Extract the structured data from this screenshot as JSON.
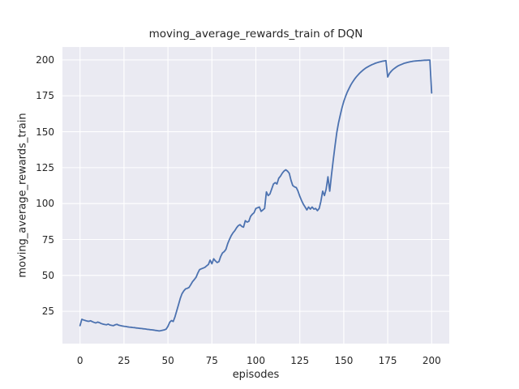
{
  "chart_data": {
    "type": "line",
    "title": "moving_average_rewards_train of DQN",
    "xlabel": "episodes",
    "ylabel": "moving_average_rewards_train",
    "xlim": [
      -10,
      210
    ],
    "ylim": [
      2.5,
      209
    ],
    "xticks": [
      0,
      25,
      50,
      75,
      100,
      125,
      150,
      175,
      200
    ],
    "yticks": [
      25,
      50,
      75,
      100,
      125,
      150,
      175,
      200
    ],
    "grid": true,
    "legend_position": "none",
    "plot_background": "#eaeaf2",
    "grid_color": "#ffffff",
    "text_color": "#262626",
    "series": [
      {
        "name": "DQN",
        "color": "#4c72b0",
        "line_width": 1.8,
        "points": [
          [
            0,
            15.0
          ],
          [
            1,
            19.4
          ],
          [
            2,
            19.0
          ],
          [
            3,
            18.6
          ],
          [
            4,
            18.2
          ],
          [
            5,
            18.0
          ],
          [
            6,
            18.4
          ],
          [
            7,
            17.8
          ],
          [
            8,
            17.3
          ],
          [
            9,
            16.9
          ],
          [
            10,
            17.5
          ],
          [
            11,
            17.1
          ],
          [
            12,
            16.5
          ],
          [
            13,
            16.1
          ],
          [
            14,
            15.8
          ],
          [
            15,
            15.6
          ],
          [
            16,
            16.1
          ],
          [
            17,
            15.5
          ],
          [
            18,
            15.2
          ],
          [
            19,
            15.0
          ],
          [
            20,
            15.6
          ],
          [
            21,
            15.9
          ],
          [
            22,
            15.3
          ],
          [
            23,
            15.0
          ],
          [
            24,
            14.8
          ],
          [
            25,
            14.6
          ],
          [
            26,
            14.4
          ],
          [
            27,
            14.2
          ],
          [
            28,
            14.0
          ],
          [
            29,
            13.9
          ],
          [
            30,
            13.7
          ],
          [
            31,
            13.6
          ],
          [
            32,
            13.4
          ],
          [
            33,
            13.3
          ],
          [
            34,
            13.1
          ],
          [
            35,
            13.0
          ],
          [
            36,
            12.8
          ],
          [
            37,
            12.7
          ],
          [
            38,
            12.5
          ],
          [
            39,
            12.4
          ],
          [
            40,
            12.2
          ],
          [
            41,
            12.1
          ],
          [
            42,
            11.9
          ],
          [
            43,
            11.7
          ],
          [
            44,
            11.5
          ],
          [
            45,
            11.3
          ],
          [
            46,
            11.5
          ],
          [
            47,
            11.8
          ],
          [
            48,
            12.1
          ],
          [
            49,
            12.6
          ],
          [
            50,
            14.6
          ],
          [
            51,
            17.4
          ],
          [
            52,
            18.6
          ],
          [
            53,
            17.9
          ],
          [
            54,
            21.2
          ],
          [
            55,
            25.3
          ],
          [
            56,
            29.6
          ],
          [
            57,
            34.0
          ],
          [
            58,
            37.2
          ],
          [
            59,
            39.2
          ],
          [
            60,
            40.6
          ],
          [
            61,
            41.0
          ],
          [
            62,
            41.6
          ],
          [
            63,
            43.6
          ],
          [
            64,
            45.6
          ],
          [
            65,
            47.1
          ],
          [
            66,
            48.7
          ],
          [
            67,
            51.6
          ],
          [
            68,
            54.0
          ],
          [
            69,
            54.6
          ],
          [
            70,
            55.1
          ],
          [
            71,
            55.6
          ],
          [
            72,
            56.6
          ],
          [
            73,
            57.6
          ],
          [
            74,
            60.6
          ],
          [
            75,
            58.1
          ],
          [
            76,
            61.6
          ],
          [
            77,
            60.1
          ],
          [
            78,
            58.9
          ],
          [
            79,
            59.6
          ],
          [
            80,
            63.1
          ],
          [
            81,
            65.6
          ],
          [
            82,
            66.6
          ],
          [
            83,
            68.1
          ],
          [
            84,
            72.1
          ],
          [
            85,
            75.1
          ],
          [
            86,
            77.6
          ],
          [
            87,
            79.6
          ],
          [
            88,
            81.1
          ],
          [
            89,
            83.1
          ],
          [
            90,
            84.6
          ],
          [
            91,
            85.3
          ],
          [
            92,
            84.1
          ],
          [
            93,
            83.6
          ],
          [
            94,
            88.1
          ],
          [
            95,
            87.1
          ],
          [
            96,
            87.6
          ],
          [
            97,
            91.1
          ],
          [
            98,
            92.6
          ],
          [
            99,
            93.6
          ],
          [
            100,
            96.6
          ],
          [
            101,
            97.1
          ],
          [
            102,
            97.6
          ],
          [
            103,
            94.6
          ],
          [
            104,
            95.6
          ],
          [
            105,
            96.6
          ],
          [
            106,
            108.1
          ],
          [
            107,
            105.6
          ],
          [
            108,
            106.6
          ],
          [
            109,
            110.1
          ],
          [
            110,
            113.6
          ],
          [
            111,
            114.6
          ],
          [
            112,
            113.6
          ],
          [
            113,
            117.6
          ],
          [
            114,
            119.1
          ],
          [
            115,
            121.1
          ],
          [
            116,
            122.6
          ],
          [
            117,
            123.5
          ],
          [
            118,
            122.6
          ],
          [
            119,
            121.1
          ],
          [
            120,
            116.1
          ],
          [
            121,
            112.6
          ],
          [
            122,
            111.6
          ],
          [
            123,
            111.1
          ],
          [
            124,
            108.6
          ],
          [
            125,
            105.1
          ],
          [
            126,
            102.1
          ],
          [
            127,
            99.6
          ],
          [
            128,
            97.6
          ],
          [
            129,
            95.6
          ],
          [
            130,
            97.6
          ],
          [
            131,
            96.1
          ],
          [
            132,
            97.6
          ],
          [
            133,
            96.1
          ],
          [
            134,
            96.6
          ],
          [
            135,
            95.1
          ],
          [
            136,
            96.6
          ],
          [
            137,
            101.6
          ],
          [
            138,
            108.6
          ],
          [
            139,
            105.6
          ],
          [
            140,
            110.1
          ],
          [
            141,
            118.6
          ],
          [
            142,
            108.6
          ],
          [
            143,
            119.6
          ],
          [
            144,
            130.1
          ],
          [
            145,
            140.1
          ],
          [
            146,
            149.1
          ],
          [
            147,
            156.1
          ],
          [
            148,
            161.6
          ],
          [
            149,
            166.6
          ],
          [
            150,
            171.1
          ],
          [
            151,
            174.6
          ],
          [
            152,
            177.6
          ],
          [
            153,
            180.1
          ],
          [
            154,
            182.6
          ],
          [
            155,
            184.6
          ],
          [
            156,
            186.4
          ],
          [
            157,
            188.0
          ],
          [
            158,
            189.4
          ],
          [
            159,
            190.7
          ],
          [
            160,
            191.9
          ],
          [
            161,
            193.0
          ],
          [
            162,
            193.9
          ],
          [
            163,
            194.7
          ],
          [
            164,
            195.4
          ],
          [
            165,
            196.1
          ],
          [
            166,
            196.7
          ],
          [
            167,
            197.2
          ],
          [
            168,
            197.7
          ],
          [
            169,
            198.1
          ],
          [
            170,
            198.5
          ],
          [
            171,
            198.8
          ],
          [
            172,
            199.1
          ],
          [
            173,
            199.3
          ],
          [
            174,
            199.5
          ],
          [
            175,
            188.1
          ],
          [
            176,
            190.6
          ],
          [
            177,
            192.1
          ],
          [
            178,
            193.3
          ],
          [
            179,
            194.3
          ],
          [
            180,
            195.2
          ],
          [
            181,
            195.9
          ],
          [
            182,
            196.5
          ],
          [
            183,
            197.0
          ],
          [
            184,
            197.5
          ],
          [
            185,
            197.9
          ],
          [
            186,
            198.2
          ],
          [
            187,
            198.5
          ],
          [
            188,
            198.8
          ],
          [
            189,
            199.0
          ],
          [
            190,
            199.2
          ],
          [
            191,
            199.3
          ],
          [
            192,
            199.4
          ],
          [
            193,
            199.5
          ],
          [
            194,
            199.6
          ],
          [
            195,
            199.7
          ],
          [
            196,
            199.8
          ],
          [
            197,
            199.8
          ],
          [
            198,
            199.9
          ],
          [
            199,
            199.9
          ],
          [
            200,
            177.0
          ]
        ]
      }
    ]
  }
}
